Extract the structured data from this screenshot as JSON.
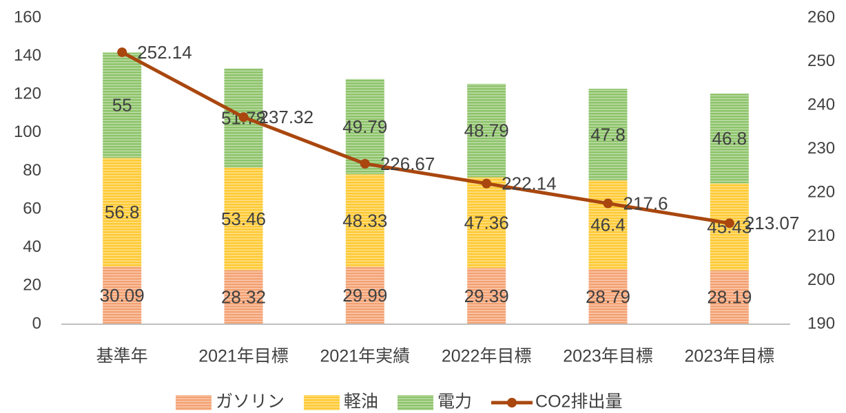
{
  "chart_data": {
    "type": "bar",
    "categories": [
      "基準年",
      "2021年目標",
      "2021年実績",
      "2022年目標",
      "2023年目標",
      "2023年目標"
    ],
    "series": [
      {
        "name": "ガソリン",
        "color": "#f4a071",
        "values": [
          30.09,
          28.32,
          29.99,
          29.39,
          28.79,
          28.19
        ]
      },
      {
        "name": "軽油",
        "color": "#ffc931",
        "values": [
          56.8,
          53.46,
          48.33,
          47.36,
          46.4,
          45.43
        ]
      },
      {
        "name": "電力",
        "color": "#8cc368",
        "values": [
          55,
          51.78,
          49.79,
          48.79,
          47.8,
          46.8
        ]
      },
      {
        "name": "CO2排出量",
        "color": "#a9470f",
        "axis": "y2",
        "type": "line",
        "values": [
          252.14,
          237.32,
          226.67,
          222.14,
          217.6,
          213.07
        ]
      }
    ],
    "ylim": [
      0,
      160
    ],
    "yticks": [
      0,
      20,
      40,
      60,
      80,
      100,
      120,
      140,
      160
    ],
    "y2lim": [
      190,
      260
    ],
    "y2ticks": [
      190,
      200,
      210,
      220,
      230,
      240,
      250,
      260
    ],
    "stacked": true,
    "grid": false,
    "legend": "bottom"
  }
}
